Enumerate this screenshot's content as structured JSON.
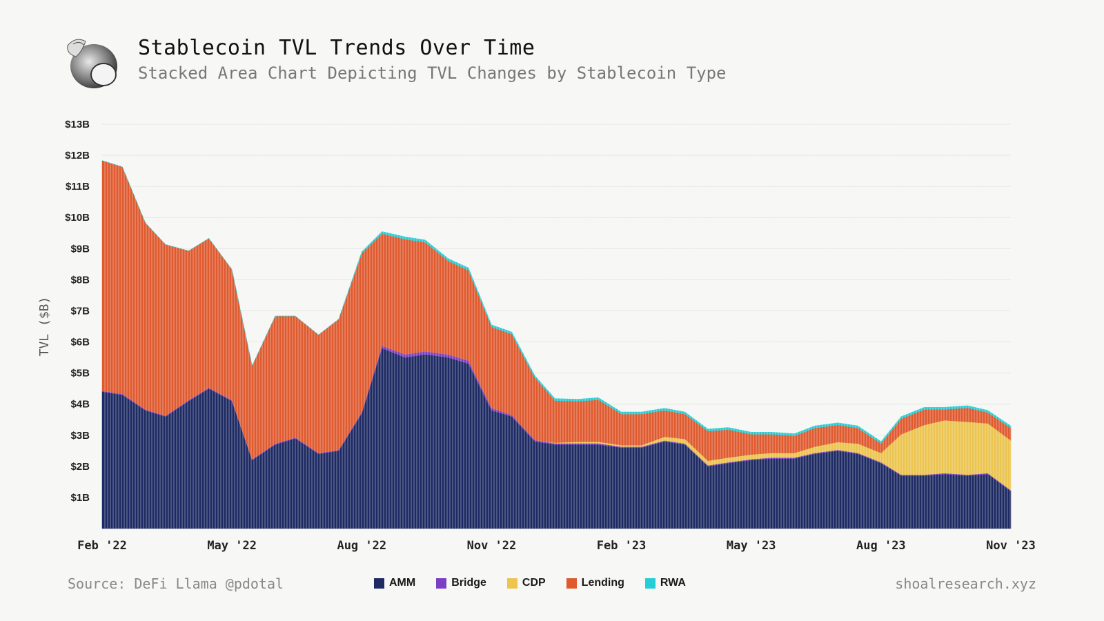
{
  "header": {
    "title": "Stablecoin TVL Trends Over Time",
    "subtitle": "Stacked Area Chart Depicting TVL Changes by Stablecoin Type"
  },
  "footer": {
    "source": "Source: DeFi Llama @pdotal",
    "site": "shoalresearch.xyz"
  },
  "legend": [
    {
      "name": "AMM",
      "color": "#1d2a63"
    },
    {
      "name": "Bridge",
      "color": "#7b3fc4"
    },
    {
      "name": "CDP",
      "color": "#ecc44e"
    },
    {
      "name": "Lending",
      "color": "#e05a2f"
    },
    {
      "name": "RWA",
      "color": "#25cdd4"
    }
  ],
  "chart_data": {
    "type": "area",
    "title": "Stablecoin TVL Trends Over Time",
    "subtitle": "Stacked Area Chart Depicting TVL Changes by Stablecoin Type",
    "ylabel": "TVL ($B)",
    "xlabel": "",
    "stacked": true,
    "ylim": [
      0,
      13
    ],
    "y_ticks": [
      {
        "value": 1,
        "label": "$1B"
      },
      {
        "value": 2,
        "label": "$2B"
      },
      {
        "value": 3,
        "label": "$3B"
      },
      {
        "value": 4,
        "label": "$4B"
      },
      {
        "value": 5,
        "label": "$5B"
      },
      {
        "value": 6,
        "label": "$6B"
      },
      {
        "value": 7,
        "label": "$7B"
      },
      {
        "value": 8,
        "label": "$8B"
      },
      {
        "value": 9,
        "label": "$9B"
      },
      {
        "value": 10,
        "label": "$10B"
      },
      {
        "value": 11,
        "label": "$11B"
      },
      {
        "value": 12,
        "label": "$12B"
      },
      {
        "value": 13,
        "label": "$13B"
      }
    ],
    "x_ticks": [
      {
        "value": "2022-02",
        "label": "Feb '22"
      },
      {
        "value": "2022-05",
        "label": "May '22"
      },
      {
        "value": "2022-08",
        "label": "Aug '22"
      },
      {
        "value": "2022-11",
        "label": "Nov '22"
      },
      {
        "value": "2023-02",
        "label": "Feb '23"
      },
      {
        "value": "2023-05",
        "label": "May '23"
      },
      {
        "value": "2023-08",
        "label": "Aug '23"
      },
      {
        "value": "2023-11",
        "label": "Nov '23"
      }
    ],
    "grid": true,
    "legend_position": "bottom",
    "x": [
      "2022-02-01",
      "2022-02-15",
      "2022-03-01",
      "2022-03-15",
      "2022-04-01",
      "2022-04-15",
      "2022-05-01",
      "2022-05-15",
      "2022-06-01",
      "2022-06-15",
      "2022-07-01",
      "2022-07-15",
      "2022-08-01",
      "2022-08-15",
      "2022-09-01",
      "2022-09-15",
      "2022-10-01",
      "2022-10-15",
      "2022-11-01",
      "2022-11-15",
      "2022-12-01",
      "2022-12-15",
      "2023-01-01",
      "2023-01-15",
      "2023-02-01",
      "2023-02-15",
      "2023-03-01",
      "2023-03-15",
      "2023-04-01",
      "2023-04-15",
      "2023-05-01",
      "2023-05-15",
      "2023-06-01",
      "2023-06-15",
      "2023-07-01",
      "2023-07-15",
      "2023-08-01",
      "2023-08-15",
      "2023-09-01",
      "2023-09-15",
      "2023-10-01",
      "2023-10-15",
      "2023-11-01"
    ],
    "series": [
      {
        "name": "AMM",
        "values": [
          4.4,
          4.3,
          3.8,
          3.6,
          4.1,
          4.5,
          4.1,
          2.2,
          2.7,
          2.9,
          2.4,
          2.5,
          3.7,
          5.8,
          5.5,
          5.6,
          5.5,
          5.3,
          3.8,
          3.6,
          2.8,
          2.7,
          2.7,
          2.7,
          2.6,
          2.6,
          2.8,
          2.7,
          2.0,
          2.1,
          2.2,
          2.25,
          2.25,
          2.4,
          2.5,
          2.4,
          2.1,
          1.7,
          1.7,
          1.75,
          1.7,
          1.75,
          1.2
        ]
      },
      {
        "name": "Bridge",
        "values": [
          0.03,
          0.03,
          0.03,
          0.03,
          0.03,
          0.03,
          0.03,
          0.03,
          0.03,
          0.03,
          0.03,
          0.03,
          0.05,
          0.08,
          0.1,
          0.1,
          0.1,
          0.1,
          0.08,
          0.05,
          0.05,
          0.04,
          0.04,
          0.04,
          0.03,
          0.03,
          0.03,
          0.03,
          0.03,
          0.03,
          0.03,
          0.03,
          0.03,
          0.03,
          0.03,
          0.03,
          0.03,
          0.03,
          0.03,
          0.03,
          0.03,
          0.03,
          0.03
        ]
      },
      {
        "name": "CDP",
        "values": [
          0,
          0,
          0,
          0,
          0,
          0,
          0,
          0,
          0,
          0,
          0,
          0,
          0,
          0,
          0,
          0,
          0,
          0,
          0,
          0,
          0,
          0.02,
          0.05,
          0.05,
          0.05,
          0.05,
          0.12,
          0.15,
          0.15,
          0.15,
          0.15,
          0.15,
          0.15,
          0.2,
          0.25,
          0.3,
          0.3,
          1.3,
          1.6,
          1.7,
          1.7,
          1.6,
          1.6
        ]
      },
      {
        "name": "Lending",
        "values": [
          7.4,
          7.3,
          6.0,
          5.5,
          4.8,
          4.8,
          4.2,
          3.0,
          4.1,
          3.9,
          3.8,
          4.2,
          5.1,
          3.6,
          3.7,
          3.5,
          3.0,
          2.9,
          2.6,
          2.6,
          2.0,
          1.35,
          1.3,
          1.35,
          1.0,
          1.0,
          0.85,
          0.8,
          0.95,
          0.9,
          0.65,
          0.6,
          0.55,
          0.6,
          0.55,
          0.5,
          0.3,
          0.5,
          0.5,
          0.35,
          0.45,
          0.35,
          0.4
        ]
      },
      {
        "name": "RWA",
        "values": [
          0,
          0,
          0,
          0,
          0,
          0,
          0,
          0,
          0,
          0,
          0,
          0,
          0.05,
          0.07,
          0.08,
          0.08,
          0.08,
          0.08,
          0.07,
          0.07,
          0.07,
          0.07,
          0.07,
          0.07,
          0.07,
          0.07,
          0.07,
          0.07,
          0.07,
          0.07,
          0.07,
          0.07,
          0.07,
          0.07,
          0.07,
          0.07,
          0.07,
          0.07,
          0.07,
          0.07,
          0.07,
          0.07,
          0.07
        ]
      }
    ]
  }
}
